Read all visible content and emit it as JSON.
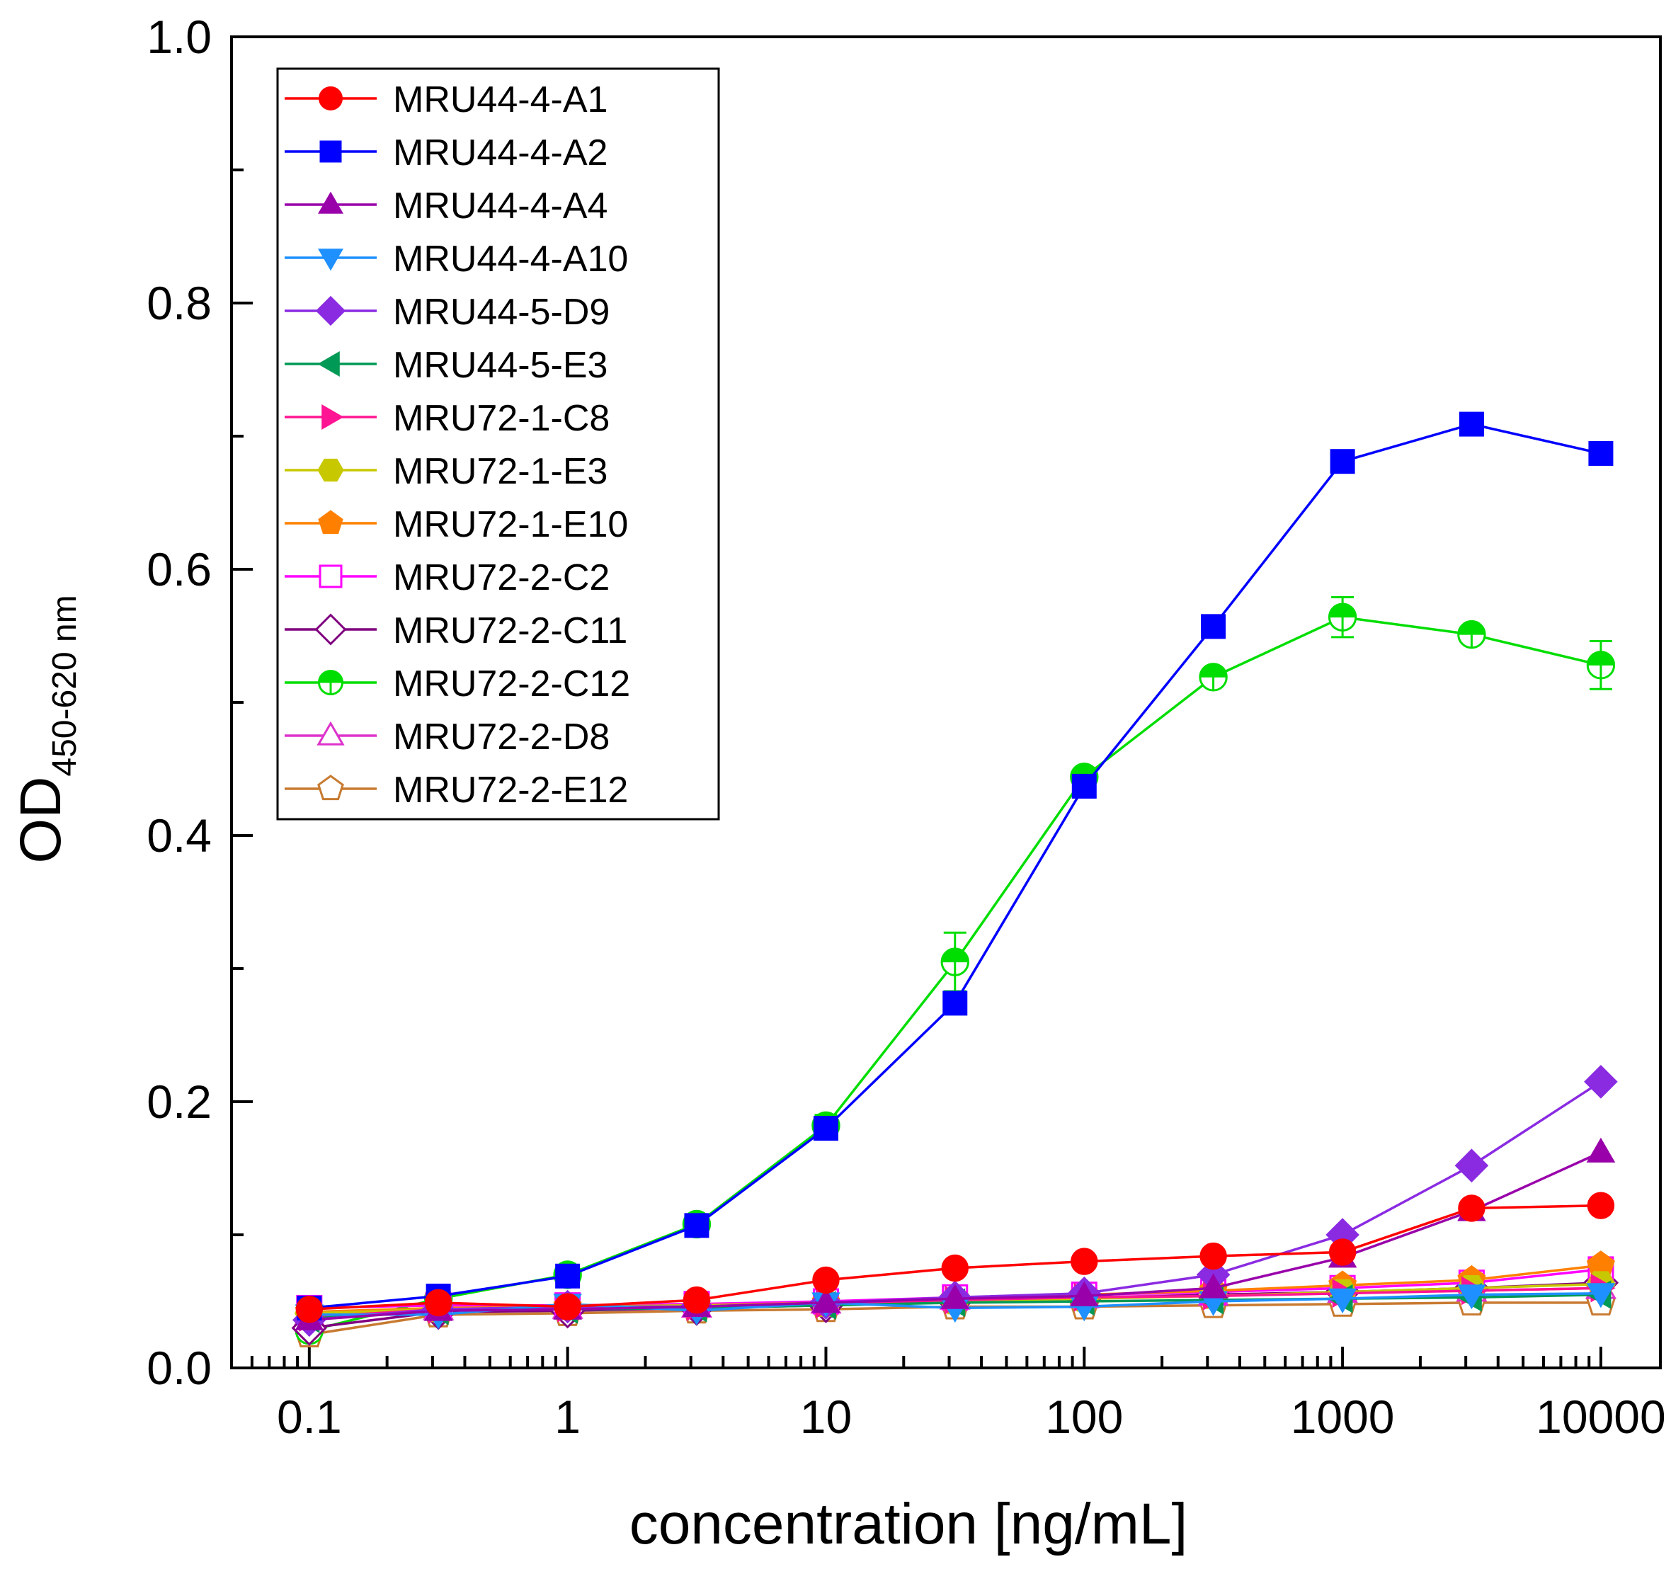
{
  "chart_data": {
    "type": "line",
    "title": "",
    "xlabel": "concentration [ng/mL]",
    "ylabel": "OD",
    "ylabel_subscript": "450-620 nm",
    "x_scale": "log",
    "xlim": [
      0.05,
      17000
    ],
    "ylim": [
      0.0,
      1.0
    ],
    "x_ticks": [
      0.1,
      1,
      10,
      100,
      1000,
      10000
    ],
    "x_tick_labels": [
      "0.1",
      "1",
      "10",
      "100",
      "1000",
      "10000"
    ],
    "y_ticks": [
      0.0,
      0.2,
      0.4,
      0.6,
      0.8,
      1.0
    ],
    "y_tick_labels": [
      "0.0",
      "0.2",
      "0.4",
      "0.6",
      "0.8",
      "1.0"
    ],
    "grid": false,
    "legend_position": "top-left",
    "x": [
      0.1,
      0.316,
      1,
      3.16,
      10,
      31.6,
      100,
      316,
      1000,
      3160,
      10000
    ],
    "series": [
      {
        "name": "MRU44-4-A1",
        "color": "#ff0000",
        "marker": "circle",
        "filled": true,
        "values": [
          0.044,
          0.049,
          0.046,
          0.051,
          0.066,
          0.075,
          0.08,
          0.084,
          0.087,
          0.12,
          0.122
        ]
      },
      {
        "name": "MRU44-4-A2",
        "color": "#0000ff",
        "marker": "square",
        "filled": true,
        "values": [
          0.045,
          0.054,
          0.069,
          0.107,
          0.18,
          0.274,
          0.437,
          0.557,
          0.681,
          0.709,
          0.687
        ]
      },
      {
        "name": "MRU44-4-A4",
        "color": "#9900aa",
        "marker": "triangle-up",
        "filled": true,
        "values": [
          0.036,
          0.043,
          0.044,
          0.046,
          0.049,
          0.052,
          0.054,
          0.06,
          0.083,
          0.118,
          0.162
        ]
      },
      {
        "name": "MRU44-4-A10",
        "color": "#1e90ff",
        "marker": "triangle-down",
        "filled": true,
        "values": [
          0.04,
          0.04,
          0.048,
          0.043,
          0.049,
          0.045,
          0.046,
          0.05,
          0.052,
          0.055,
          0.056
        ]
      },
      {
        "name": "MRU44-5-D9",
        "color": "#8a2be2",
        "marker": "diamond",
        "filled": true,
        "values": [
          0.036,
          0.044,
          0.046,
          0.046,
          0.049,
          0.053,
          0.056,
          0.07,
          0.1,
          0.152,
          0.215
        ]
      },
      {
        "name": "MRU44-5-E3",
        "color": "#009955",
        "marker": "triangle-left",
        "filled": true,
        "values": [
          0.037,
          0.043,
          0.044,
          0.045,
          0.047,
          0.049,
          0.05,
          0.051,
          0.052,
          0.053,
          0.055
        ]
      },
      {
        "name": "MRU72-1-C8",
        "color": "#ff1493",
        "marker": "triangle-right",
        "filled": true,
        "values": [
          0.038,
          0.044,
          0.045,
          0.046,
          0.048,
          0.051,
          0.053,
          0.054,
          0.056,
          0.058,
          0.06
        ]
      },
      {
        "name": "MRU72-1-E3",
        "color": "#c8c800",
        "marker": "hexagon",
        "filled": true,
        "values": [
          0.041,
          0.044,
          0.046,
          0.047,
          0.048,
          0.05,
          0.052,
          0.054,
          0.057,
          0.06,
          0.063
        ]
      },
      {
        "name": "MRU72-1-E10",
        "color": "#ff8000",
        "marker": "pentagon",
        "filled": true,
        "values": [
          0.042,
          0.045,
          0.046,
          0.047,
          0.049,
          0.052,
          0.055,
          0.058,
          0.062,
          0.066,
          0.077
        ]
      },
      {
        "name": "MRU72-2-C2",
        "color": "#ff00ff",
        "marker": "square",
        "filled": false,
        "values": [
          0.045,
          0.047,
          0.047,
          0.048,
          0.05,
          0.053,
          0.055,
          0.057,
          0.06,
          0.064,
          0.074
        ]
      },
      {
        "name": "MRU72-2-C11",
        "color": "#800080",
        "marker": "diamond",
        "filled": false,
        "values": [
          0.03,
          0.042,
          0.043,
          0.045,
          0.047,
          0.05,
          0.052,
          0.055,
          0.057,
          0.06,
          0.064
        ]
      },
      {
        "name": "MRU72-2-C12",
        "color": "#00dd00",
        "marker": "circle-half",
        "filled": false,
        "values": [
          0.028,
          0.052,
          0.07,
          0.108,
          0.182,
          0.305,
          0.444,
          0.519,
          0.564,
          0.551,
          0.528
        ],
        "errors": [
          0.0,
          0.0,
          0.0,
          0.0,
          0.008,
          0.022,
          0.005,
          0.0,
          0.015,
          0.0,
          0.018
        ]
      },
      {
        "name": "MRU72-2-D8",
        "color": "#dd33cc",
        "marker": "triangle-up",
        "filled": false,
        "values": [
          0.04,
          0.044,
          0.045,
          0.046,
          0.049,
          0.052,
          0.053,
          0.055,
          0.057,
          0.058,
          0.06
        ]
      },
      {
        "name": "MRU72-2-E12",
        "color": "#c87a30",
        "marker": "pentagon",
        "filled": false,
        "values": [
          0.025,
          0.04,
          0.041,
          0.043,
          0.044,
          0.046,
          0.046,
          0.047,
          0.048,
          0.049,
          0.049
        ]
      }
    ]
  }
}
